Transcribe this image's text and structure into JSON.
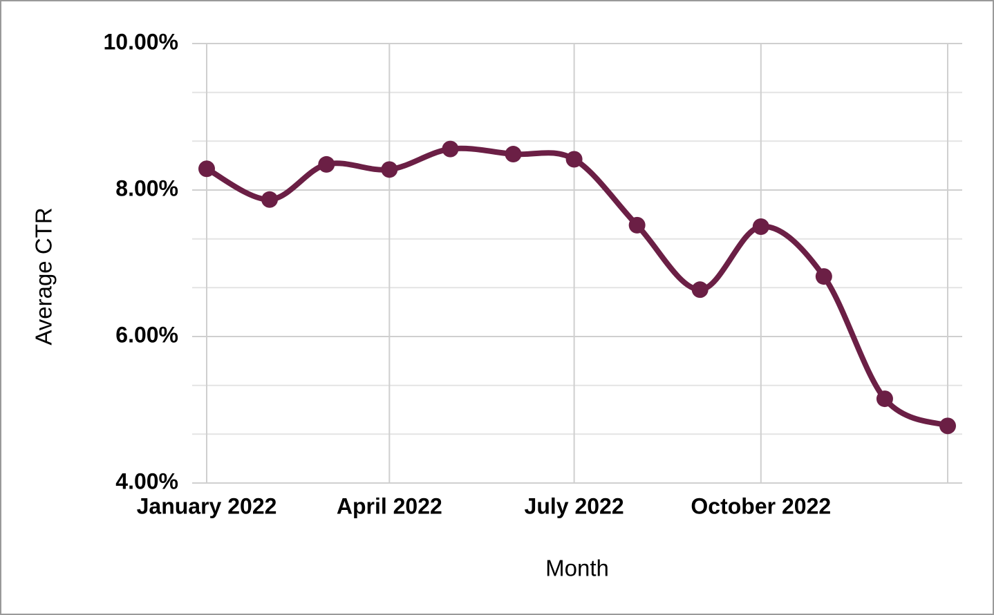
{
  "chart_data": {
    "type": "line",
    "x_label": "Month",
    "y_label": "Average CTR",
    "x": [
      "2022-01",
      "2022-02",
      "2022-03",
      "2022-04",
      "2022-05",
      "2022-06",
      "2022-07",
      "2022-08",
      "2022-09",
      "2022-10",
      "2022-11",
      "2022-12",
      "2023-01"
    ],
    "values": [
      8.29,
      7.87,
      8.35,
      8.28,
      8.56,
      8.49,
      8.42,
      7.52,
      6.64,
      7.5,
      6.82,
      5.15,
      4.78
    ],
    "color": "#6b1f45",
    "xlim": [
      "2022-01",
      "2023-01"
    ],
    "xticks": [
      {
        "value": "2022-01",
        "label": "January 2022"
      },
      {
        "value": "2022-04",
        "label": "April 2022"
      },
      {
        "value": "2022-07",
        "label": "July 2022"
      },
      {
        "value": "2022-10",
        "label": "October 2022"
      },
      {
        "value": "2023-01",
        "label": null
      }
    ],
    "ylim": [
      4,
      10
    ],
    "yticks": [
      {
        "value": 4,
        "label": "4.00%"
      },
      {
        "value": 6,
        "label": "6.00%"
      },
      {
        "value": 8,
        "label": "8.00%"
      },
      {
        "value": 10,
        "label": "10.00%"
      }
    ],
    "minor_yticks": [
      4.667,
      5.333,
      6.667,
      7.333,
      8.667,
      9.333
    ],
    "grid": true,
    "smooth": true
  }
}
